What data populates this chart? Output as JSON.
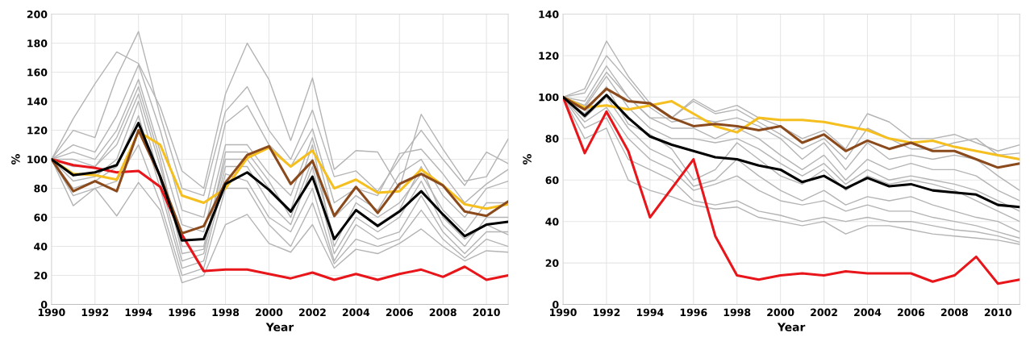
{
  "chart_data": [
    {
      "type": "line",
      "xlabel": "Year",
      "ylabel": "%",
      "x": [
        1990,
        1991,
        1992,
        1993,
        1994,
        1995,
        1996,
        1997,
        1998,
        1999,
        2000,
        2001,
        2002,
        2003,
        2004,
        2005,
        2006,
        2007,
        2008,
        2009,
        2010,
        2011
      ],
      "xlim": [
        1990,
        2011
      ],
      "xticks": [
        1990,
        1992,
        1994,
        1996,
        1998,
        2000,
        2002,
        2004,
        2006,
        2008,
        2010
      ],
      "ylim": [
        0,
        200
      ],
      "yticks": [
        0,
        20,
        40,
        60,
        80,
        100,
        120,
        140,
        160,
        180,
        200
      ],
      "grid": true,
      "marker": "none",
      "series": [
        {
          "color": "#b4b4b4",
          "values": [
            100,
            128,
            152,
            174,
            166,
            136,
            92,
            80,
            145,
            180,
            155,
            113,
            156,
            93,
            106,
            105,
            80,
            131,
            107,
            85,
            88,
            114
          ]
        },
        {
          "color": "#b4b4b4",
          "values": [
            100,
            120,
            115,
            157,
            188,
            130,
            80,
            75,
            133,
            150,
            120,
            100,
            134,
            88,
            92,
            78,
            100,
            120,
            100,
            82,
            105,
            97
          ]
        },
        {
          "color": "#b4b4b4",
          "values": [
            100,
            110,
            105,
            130,
            165,
            120,
            65,
            60,
            125,
            137,
            110,
            95,
            121,
            70,
            80,
            75,
            104,
            107,
            90,
            70,
            83,
            93
          ]
        },
        {
          "color": "#b4b4b4",
          "values": [
            100,
            105,
            100,
            120,
            155,
            105,
            55,
            50,
            110,
            110,
            90,
            75,
            115,
            60,
            75,
            65,
            90,
            100,
            75,
            60,
            80,
            85
          ]
        },
        {
          "color": "#b4b4b4",
          "values": [
            100,
            100,
            95,
            115,
            150,
            100,
            35,
            38,
            105,
            105,
            85,
            60,
            100,
            45,
            65,
            55,
            65,
            95,
            60,
            45,
            55,
            48
          ]
        },
        {
          "color": "#b4b4b4",
          "values": [
            100,
            95,
            95,
            110,
            145,
            95,
            40,
            40,
            100,
            100,
            80,
            65,
            110,
            40,
            70,
            60,
            70,
            90,
            65,
            50,
            70,
            70
          ]
        },
        {
          "color": "#b4b4b4",
          "values": [
            100,
            85,
            88,
            100,
            140,
            85,
            30,
            35,
            95,
            95,
            70,
            55,
            95,
            35,
            60,
            50,
            60,
            85,
            55,
            40,
            60,
            60
          ]
        },
        {
          "color": "#b4b4b4",
          "values": [
            100,
            80,
            85,
            95,
            130,
            80,
            25,
            30,
            90,
            85,
            60,
            50,
            80,
            30,
            55,
            45,
            50,
            75,
            50,
            35,
            50,
            50
          ]
        },
        {
          "color": "#b4b4b4",
          "values": [
            100,
            75,
            80,
            85,
            110,
            70,
            20,
            25,
            80,
            80,
            55,
            40,
            70,
            28,
            45,
            40,
            45,
            65,
            45,
            32,
            45,
            40
          ]
        },
        {
          "color": "#b4b4b4",
          "values": [
            100,
            68,
            80,
            61,
            84,
            65,
            15,
            20,
            55,
            62,
            42,
            36,
            55,
            25,
            38,
            35,
            42,
            52,
            40,
            30,
            37,
            36
          ]
        },
        {
          "color": "#e8161b",
          "values": [
            100,
            96,
            94,
            91,
            92,
            81,
            48,
            23,
            24,
            24,
            21,
            18,
            22,
            17,
            21,
            17,
            21,
            24,
            19,
            26,
            17,
            20
          ]
        },
        {
          "color": "#f5bf1f",
          "values": [
            100,
            90,
            89,
            86,
            119,
            110,
            75,
            70,
            80,
            101,
            108,
            95,
            106,
            80,
            86,
            77,
            78,
            93,
            82,
            69,
            66,
            69
          ]
        },
        {
          "color": "#8b4a1c",
          "values": [
            100,
            78,
            85,
            78,
            120,
            88,
            49,
            54,
            84,
            103,
            109,
            83,
            99,
            61,
            81,
            63,
            83,
            90,
            82,
            64,
            61,
            71
          ]
        },
        {
          "color": "#000000",
          "values": [
            100,
            89,
            91,
            96,
            125,
            88,
            44,
            45,
            83,
            91,
            79,
            64,
            88,
            45,
            65,
            54,
            64,
            78,
            62,
            47,
            55,
            57
          ]
        }
      ]
    },
    {
      "type": "line",
      "xlabel": "Year",
      "ylabel": "%",
      "x": [
        1990,
        1991,
        1992,
        1993,
        1994,
        1995,
        1996,
        1997,
        1998,
        1999,
        2000,
        2001,
        2002,
        2003,
        2004,
        2005,
        2006,
        2007,
        2008,
        2009,
        2010,
        2011
      ],
      "xlim": [
        1990,
        2011
      ],
      "xticks": [
        1990,
        1992,
        1994,
        1996,
        1998,
        2000,
        2002,
        2004,
        2006,
        2008,
        2010
      ],
      "ylim": [
        0,
        140
      ],
      "yticks": [
        0,
        20,
        40,
        60,
        80,
        100,
        120,
        140
      ],
      "grid": true,
      "marker": "none",
      "series": [
        {
          "color": "#b4b4b4",
          "values": [
            100,
            104,
            127,
            110,
            97,
            90,
            99,
            93,
            96,
            90,
            86,
            80,
            84,
            75,
            92,
            88,
            80,
            80,
            82,
            78,
            74,
            77
          ]
        },
        {
          "color": "#b4b4b4",
          "values": [
            100,
            96,
            112,
            100,
            90,
            90,
            98,
            92,
            94,
            88,
            82,
            75,
            80,
            70,
            85,
            80,
            75,
            75,
            78,
            80,
            72,
            73
          ]
        },
        {
          "color": "#b4b4b4",
          "values": [
            100,
            102,
            120,
            108,
            95,
            88,
            90,
            88,
            90,
            86,
            80,
            70,
            78,
            65,
            78,
            70,
            72,
            70,
            72,
            70,
            62,
            55
          ]
        },
        {
          "color": "#b4b4b4",
          "values": [
            100,
            98,
            115,
            100,
            90,
            85,
            85,
            80,
            85,
            80,
            72,
            65,
            72,
            60,
            70,
            65,
            68,
            65,
            65,
            62,
            55,
            50
          ]
        },
        {
          "color": "#b4b4b4",
          "values": [
            100,
            95,
            110,
            95,
            85,
            80,
            80,
            78,
            80,
            75,
            68,
            62,
            68,
            58,
            65,
            60,
            62,
            60,
            58,
            55,
            50,
            45
          ]
        },
        {
          "color": "#b4b4b4",
          "values": [
            100,
            92,
            105,
            87,
            82,
            75,
            60,
            65,
            78,
            70,
            62,
            58,
            65,
            55,
            62,
            58,
            60,
            58,
            55,
            50,
            45,
            40
          ]
        },
        {
          "color": "#b4b4b4",
          "values": [
            100,
            90,
            100,
            85,
            75,
            70,
            57,
            60,
            70,
            62,
            55,
            50,
            55,
            48,
            52,
            50,
            52,
            48,
            45,
            42,
            40,
            35
          ]
        },
        {
          "color": "#b4b4b4",
          "values": [
            100,
            88,
            95,
            80,
            70,
            65,
            55,
            58,
            62,
            55,
            50,
            48,
            50,
            45,
            48,
            45,
            45,
            42,
            40,
            38,
            35,
            32
          ]
        },
        {
          "color": "#b4b4b4",
          "values": [
            100,
            85,
            90,
            70,
            65,
            60,
            50,
            48,
            50,
            45,
            43,
            40,
            42,
            40,
            42,
            40,
            40,
            38,
            36,
            35,
            33,
            30
          ]
        },
        {
          "color": "#b4b4b4",
          "values": [
            100,
            80,
            85,
            60,
            55,
            52,
            48,
            46,
            47,
            42,
            40,
            38,
            40,
            34,
            38,
            38,
            36,
            34,
            33,
            32,
            31,
            29
          ]
        },
        {
          "color": "#e8161b",
          "values": [
            100,
            73,
            93,
            74,
            42,
            56,
            70,
            33,
            14,
            12,
            14,
            15,
            14,
            16,
            15,
            15,
            15,
            11,
            14,
            23,
            10,
            12
          ]
        },
        {
          "color": "#f5bf1f",
          "values": [
            100,
            95,
            96,
            94,
            96,
            98,
            92,
            86,
            83,
            90,
            89,
            89,
            88,
            86,
            84,
            80,
            78,
            79,
            76,
            74,
            72,
            70
          ]
        },
        {
          "color": "#8b4a1c",
          "values": [
            100,
            94,
            104,
            98,
            97,
            90,
            86,
            87,
            86,
            84,
            86,
            78,
            82,
            74,
            79,
            75,
            78,
            74,
            74,
            70,
            66,
            68
          ]
        },
        {
          "color": "#000000",
          "values": [
            100,
            91,
            101,
            90,
            81,
            77,
            74,
            71,
            70,
            67,
            65,
            59,
            62,
            56,
            61,
            57,
            58,
            55,
            54,
            53,
            48,
            47
          ]
        }
      ]
    }
  ]
}
